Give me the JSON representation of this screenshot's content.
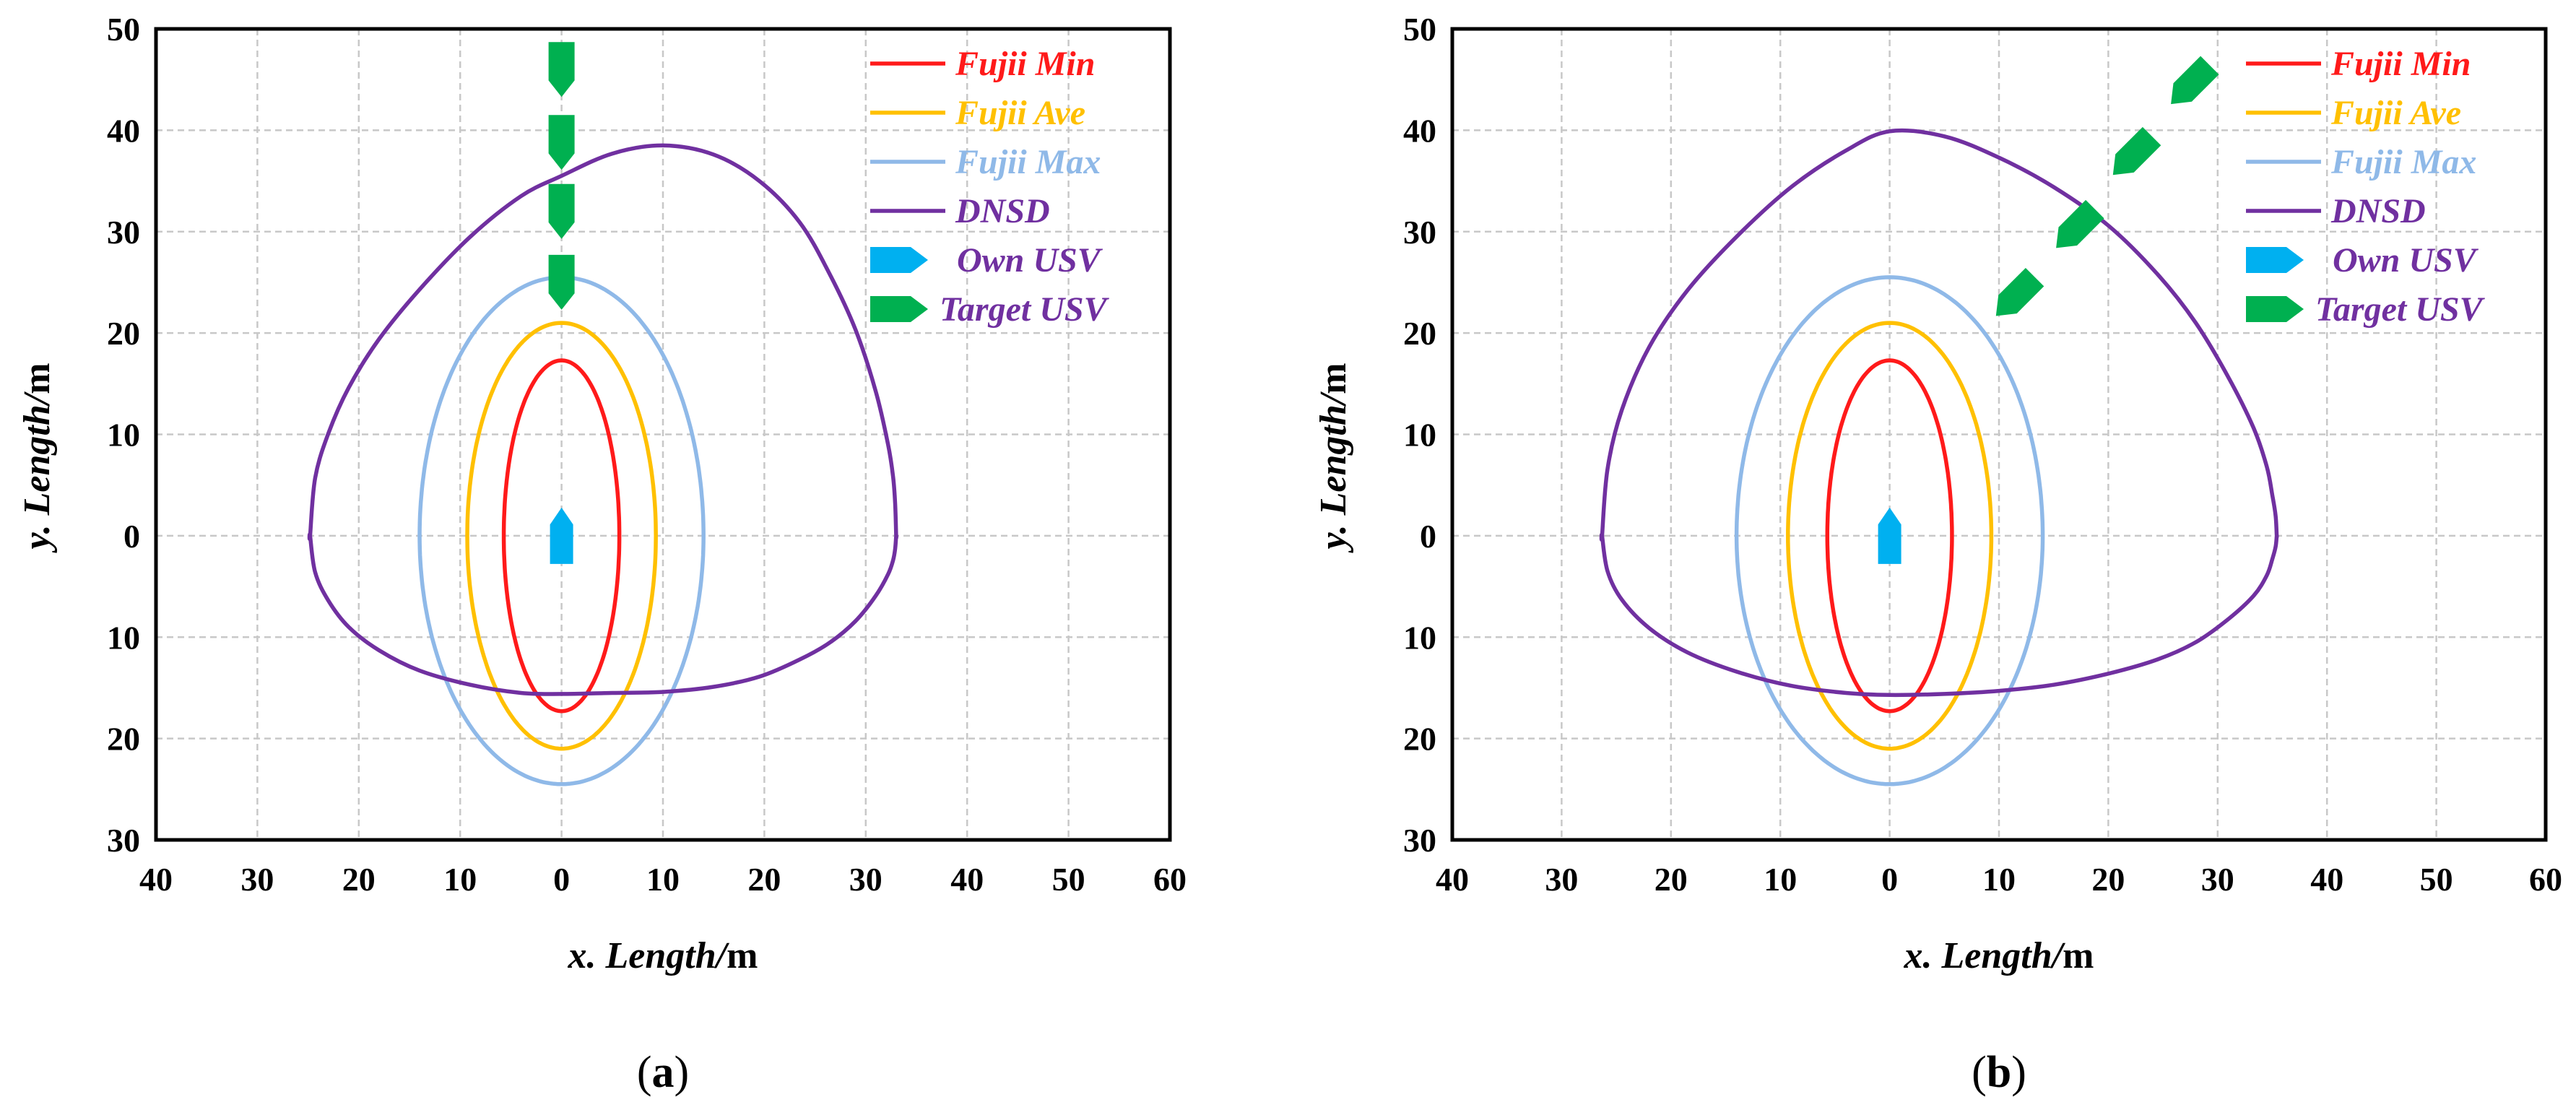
{
  "chart_data": [
    {
      "type": "line",
      "panel_label": "(a)",
      "caption": {
        "open": "(",
        "letter": "a",
        "close": ")"
      },
      "xlabel": {
        "italic": "x. Length/",
        "unit": "m"
      },
      "ylabel": {
        "italic": "y. Length/",
        "unit": "m"
      },
      "xlim": [
        -40,
        60
      ],
      "ylim": [
        -30,
        50
      ],
      "x_ticks": [
        -40,
        -30,
        -20,
        -10,
        0,
        10,
        20,
        30,
        40,
        50,
        60
      ],
      "x_tick_labels": [
        "40",
        "30",
        "20",
        "10",
        "0",
        "10",
        "20",
        "30",
        "40",
        "50",
        "60"
      ],
      "y_ticks": [
        -30,
        -20,
        -10,
        0,
        10,
        20,
        30,
        40,
        50
      ],
      "y_tick_labels": [
        "30",
        "20",
        "10",
        "0",
        "10",
        "20",
        "30",
        "40",
        "50"
      ],
      "grid": true,
      "legend_position": "top-right",
      "legend": [
        {
          "label": "Fujii Min",
          "color": "#ff1a1a",
          "kind": "line"
        },
        {
          "label": "Fujii Ave",
          "color": "#ffc000",
          "kind": "line"
        },
        {
          "label": "Fujii Max",
          "color": "#8fb9e8",
          "kind": "line"
        },
        {
          "label": "DNSD",
          "color": "#7030a0",
          "kind": "line"
        },
        {
          "label": "Own USV",
          "color": "#00b0f0",
          "kind": "marker"
        },
        {
          "label": "Target USV",
          "color": "#00b050",
          "kind": "marker"
        }
      ],
      "series": [
        {
          "name": "Fujii Min",
          "shape": "ellipse",
          "center": [
            0,
            0
          ],
          "semi_x": 5.7,
          "semi_y_top": 17.3,
          "semi_y_bottom": 17.3
        },
        {
          "name": "Fujii Ave",
          "shape": "ellipse",
          "center": [
            0,
            0
          ],
          "semi_x": 9.3,
          "semi_y_top": 21,
          "semi_y_bottom": 21
        },
        {
          "name": "Fujii Max",
          "shape": "ellipse",
          "center": [
            0,
            0
          ],
          "semi_x": 14,
          "semi_y_top": 25.5,
          "semi_y_bottom": 24.5
        },
        {
          "name": "DNSD",
          "shape": "domain",
          "x": [
            -24.8,
            -24.3,
            -23,
            -21,
            -18,
            -14,
            -9,
            -4,
            0,
            5,
            10,
            15,
            19.5,
            23.5,
            26.5,
            29,
            31,
            32.2,
            32.7,
            32.9,
            33
          ],
          "y_upper": [
            0,
            5.7,
            10.1,
            14.6,
            19.4,
            24.3,
            29.5,
            33.5,
            35.5,
            37.7,
            38.5,
            37.6,
            35,
            30.9,
            25.7,
            20.3,
            14.2,
            9.0,
            5.8,
            3.2,
            0
          ],
          "y_lower": [
            0,
            -3.6,
            -6.4,
            -9.0,
            -11.3,
            -13.3,
            -14.7,
            -15.5,
            -15.6,
            -15.5,
            -15.4,
            -14.9,
            -13.9,
            -12.2,
            -10.5,
            -8.4,
            -5.9,
            -3.8,
            -2.4,
            -1.3,
            0
          ]
        },
        {
          "name": "Own USV",
          "marker": "ship",
          "position": [
            0,
            0
          ],
          "heading_deg": 0
        },
        {
          "name": "Target USV",
          "marker": "ship",
          "heading_deg": 180,
          "positions": [
            [
              0,
              46
            ],
            [
              0,
              38.8
            ],
            [
              0,
              32
            ],
            [
              0,
              25
            ]
          ]
        }
      ]
    },
    {
      "type": "line",
      "panel_label": "(b)",
      "caption": {
        "open": "(",
        "letter": "b",
        "close": ")"
      },
      "xlabel": {
        "italic": "x. Length/",
        "unit": "m"
      },
      "ylabel": {
        "italic": "y. Length/",
        "unit": "m"
      },
      "xlim": [
        -40,
        60
      ],
      "ylim": [
        -30,
        50
      ],
      "x_ticks": [
        -40,
        -30,
        -20,
        -10,
        0,
        10,
        20,
        30,
        40,
        50,
        60
      ],
      "x_tick_labels": [
        "40",
        "30",
        "20",
        "10",
        "0",
        "10",
        "20",
        "30",
        "40",
        "50",
        "60"
      ],
      "y_ticks": [
        -30,
        -20,
        -10,
        0,
        10,
        20,
        30,
        40,
        50
      ],
      "y_tick_labels": [
        "30",
        "20",
        "10",
        "0",
        "10",
        "20",
        "30",
        "40",
        "50"
      ],
      "grid": true,
      "legend_position": "top-right",
      "legend": [
        {
          "label": "Fujii Min",
          "color": "#ff1a1a",
          "kind": "line"
        },
        {
          "label": "Fujii Ave",
          "color": "#ffc000",
          "kind": "line"
        },
        {
          "label": "Fujii Max",
          "color": "#8fb9e8",
          "kind": "line"
        },
        {
          "label": "DNSD",
          "color": "#7030a0",
          "kind": "line"
        },
        {
          "label": "Own USV",
          "color": "#00b0f0",
          "kind": "marker"
        },
        {
          "label": "Target USV",
          "color": "#00b050",
          "kind": "marker"
        }
      ],
      "series": [
        {
          "name": "Fujii Min",
          "shape": "ellipse",
          "center": [
            0,
            0
          ],
          "semi_x": 5.7,
          "semi_y_top": 17.3,
          "semi_y_bottom": 17.3
        },
        {
          "name": "Fujii Ave",
          "shape": "ellipse",
          "center": [
            0,
            0
          ],
          "semi_x": 9.3,
          "semi_y_top": 21,
          "semi_y_bottom": 21
        },
        {
          "name": "Fujii Max",
          "shape": "ellipse",
          "center": [
            0,
            0
          ],
          "semi_x": 14,
          "semi_y_top": 25.5,
          "semi_y_bottom": 24.5
        },
        {
          "name": "DNSD",
          "shape": "domain",
          "x": [
            -26.3,
            -25.8,
            -24.5,
            -22,
            -18.5,
            -14,
            -9,
            -4,
            0,
            5,
            10,
            15,
            20,
            24.5,
            28,
            31,
            33.3,
            34.5,
            35,
            35.3,
            35.4
          ],
          "y_upper": [
            0,
            6.6,
            12.4,
            18.6,
            24.2,
            29.5,
            34.4,
            38.0,
            39.9,
            39.4,
            37.3,
            34.4,
            30.6,
            25.8,
            21.0,
            15.6,
            10.6,
            6.8,
            4.0,
            2.0,
            0
          ],
          "y_lower": [
            0,
            -3.5,
            -6.3,
            -9.1,
            -11.5,
            -13.4,
            -14.8,
            -15.5,
            -15.7,
            -15.6,
            -15.3,
            -14.7,
            -13.6,
            -12.2,
            -10.5,
            -8.2,
            -5.9,
            -3.9,
            -2.3,
            -1.1,
            0
          ]
        },
        {
          "name": "Own USV",
          "marker": "ship",
          "position": [
            0,
            0
          ],
          "heading_deg": 0
        },
        {
          "name": "Target USV",
          "marker": "ship",
          "heading_deg": 225,
          "positions": [
            [
              27.5,
              44.5
            ],
            [
              22.2,
              37.5
            ],
            [
              17,
              30.3
            ],
            [
              11.5,
              23.6
            ]
          ]
        }
      ]
    }
  ]
}
